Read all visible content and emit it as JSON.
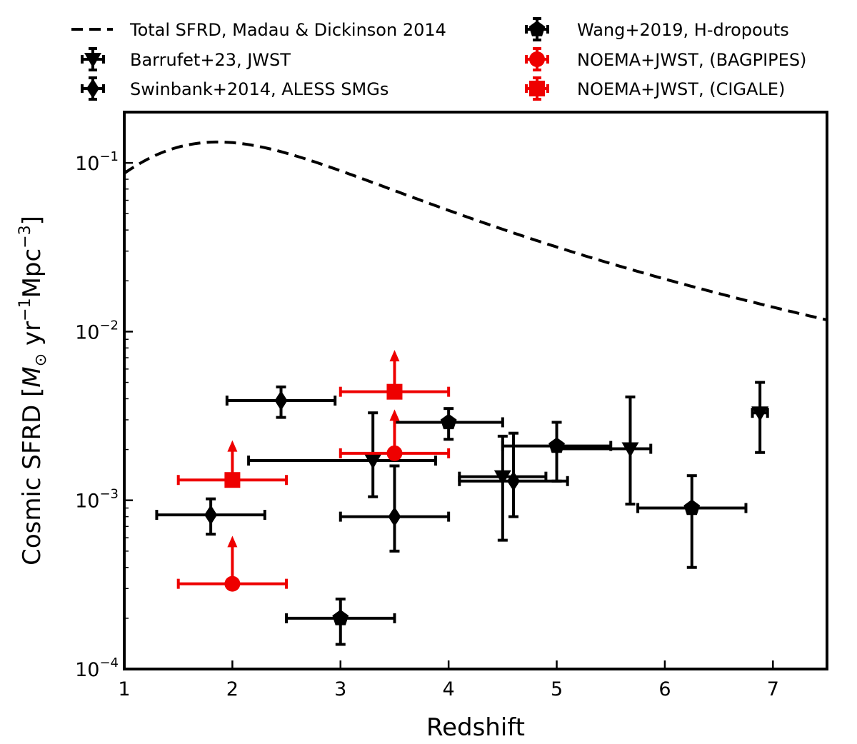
{
  "chart_data": {
    "type": "scatter",
    "title": "",
    "xlabel": "Redshift",
    "ylabel": {
      "prefix": "Cosmic SFRD [",
      "msun": "M",
      "sun_symbol": "⊙",
      "yr": " yr",
      "yr_exp": "−1",
      "mpc": "Mpc",
      "mpc_exp": "−3",
      "suffix": "]"
    },
    "xlim": [
      1,
      7.5
    ],
    "ylim": [
      0.0001,
      0.2
    ],
    "yscale": "log",
    "x_ticks": [
      1,
      2,
      3,
      4,
      5,
      6,
      7
    ],
    "x_tick_labels": [
      "1",
      "2",
      "3",
      "4",
      "5",
      "6",
      "7"
    ],
    "y_ticks": [
      0.0001,
      0.001,
      0.01,
      0.1
    ],
    "y_tick_labels": [
      {
        "base": "10",
        "exp": "−4"
      },
      {
        "base": "10",
        "exp": "−3"
      },
      {
        "base": "10",
        "exp": "−2"
      },
      {
        "base": "10",
        "exp": "−1"
      }
    ],
    "legend_position": "top-outside",
    "series": [
      {
        "name": "Total SFRD, Madau & Dickinson 2014",
        "kind": "curve",
        "color": "#000000",
        "style": "dashed",
        "function": "madau_dickinson_2014"
      },
      {
        "name": "Barrufet+23, JWST",
        "kind": "points",
        "marker": "triangle-down",
        "color": "#000000",
        "points": [
          {
            "x": 3.3,
            "y": 0.00172,
            "xerr": [
              1.15,
              0.58
            ],
            "yerr": [
              0.00067,
              0.00158
            ]
          },
          {
            "x": 4.5,
            "y": 0.00138,
            "xerr": [
              0.4,
              0.4
            ],
            "yerr": [
              0.0008,
              0.00102
            ]
          },
          {
            "x": 5.68,
            "y": 0.00202,
            "xerr": [
              0.68,
              0.19
            ],
            "yerr": [
              0.00107,
              0.00208
            ]
          },
          {
            "x": 6.88,
            "y": 0.0033,
            "xerr": [
              0.07,
              0.07
            ],
            "yerr": [
              0.00138,
              0.0017
            ]
          }
        ]
      },
      {
        "name": "Swinbank+2014, ALESS SMGs",
        "kind": "points",
        "marker": "diamond",
        "color": "#000000",
        "points": [
          {
            "x": 1.8,
            "y": 0.00082,
            "xerr": [
              0.5,
              0.5
            ],
            "yerr": [
              0.00019,
              0.0002
            ]
          },
          {
            "x": 2.45,
            "y": 0.0039,
            "xerr": [
              0.5,
              0.5
            ],
            "yerr": [
              0.0008,
              0.0008
            ]
          },
          {
            "x": 3.5,
            "y": 0.0008,
            "xerr": [
              0.5,
              0.5
            ],
            "yerr": [
              0.0003,
              0.0008
            ]
          },
          {
            "x": 4.6,
            "y": 0.0013,
            "xerr": [
              0.5,
              0.5
            ],
            "yerr": [
              0.0005,
              0.0012
            ]
          }
        ]
      },
      {
        "name": "Wang+2019, H-dropouts",
        "kind": "points",
        "marker": "pentagon",
        "color": "#000000",
        "points": [
          {
            "x": 3.0,
            "y": 0.0002,
            "xerr": [
              0.5,
              0.5
            ],
            "yerr": [
              6e-05,
              6e-05
            ]
          },
          {
            "x": 4.0,
            "y": 0.0029,
            "xerr": [
              0.5,
              0.5
            ],
            "yerr": [
              0.0006,
              0.0006
            ]
          },
          {
            "x": 5.0,
            "y": 0.0021,
            "xerr": [
              0.5,
              0.5
            ],
            "yerr": [
              0.0008,
              0.0008
            ]
          },
          {
            "x": 6.25,
            "y": 0.0009,
            "xerr": [
              0.5,
              0.5
            ],
            "yerr": [
              0.0005,
              0.0005
            ]
          }
        ]
      },
      {
        "name": "NOEMA+JWST, (BAGPIPES)",
        "kind": "points",
        "marker": "circle",
        "color": "#ee0000",
        "lower_limit": true,
        "points": [
          {
            "x": 2.0,
            "y": 0.00032,
            "xerr": [
              0.5,
              0.5
            ],
            "arrow_to": 0.00057
          },
          {
            "x": 3.5,
            "y": 0.0019,
            "xerr": [
              0.5,
              0.5
            ],
            "arrow_to": 0.0032
          }
        ]
      },
      {
        "name": "NOEMA+JWST, (CIGALE)",
        "kind": "points",
        "marker": "square",
        "color": "#ee0000",
        "lower_limit": true,
        "points": [
          {
            "x": 2.0,
            "y": 0.00132,
            "xerr": [
              0.5,
              0.5
            ],
            "arrow_to": 0.0021
          },
          {
            "x": 3.5,
            "y": 0.0044,
            "xerr": [
              0.5,
              0.5
            ],
            "arrow_to": 0.0072
          }
        ]
      }
    ]
  }
}
